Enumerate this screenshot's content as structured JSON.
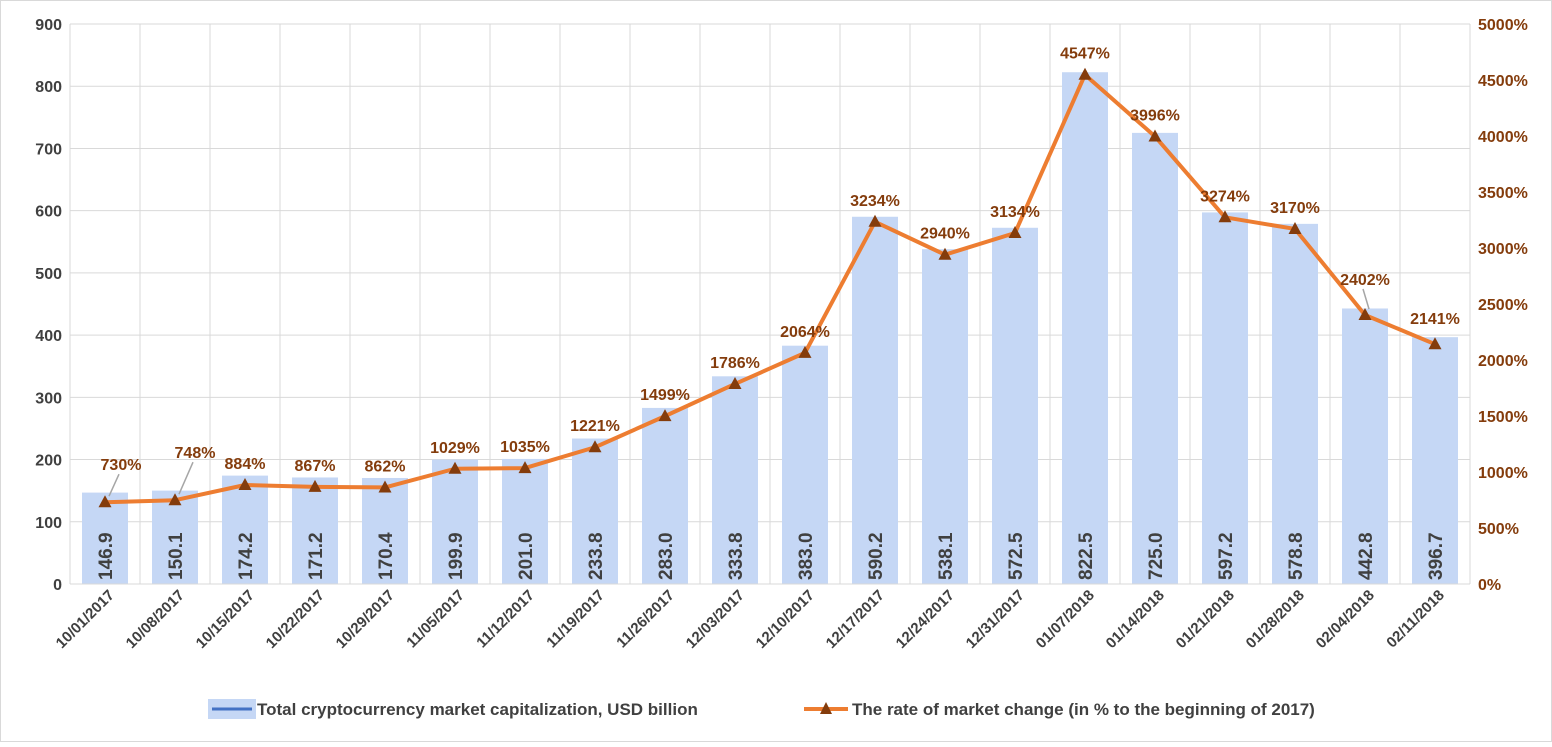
{
  "chart_data": {
    "type": "bar",
    "categories": [
      "10/01/2017",
      "10/08/2017",
      "10/15/2017",
      "10/22/2017",
      "10/29/2017",
      "11/05/2017",
      "11/12/2017",
      "11/19/2017",
      "11/26/2017",
      "12/03/2017",
      "12/10/2017",
      "12/17/2017",
      "12/24/2017",
      "12/31/2017",
      "01/07/2018",
      "01/14/2018",
      "01/21/2018",
      "01/28/2018",
      "02/04/2018",
      "02/11/2018"
    ],
    "bar_labels": [
      "146.9",
      "150.1",
      "174.2",
      "171.2",
      "170.4",
      "199.9",
      "201.0",
      "233.8",
      "283.0",
      "333.8",
      "383.0",
      "590.2",
      "538.1",
      "572.5",
      "822.5",
      "725.0",
      "597.2",
      "578.8",
      "442.8",
      "396.7"
    ],
    "line_labels": [
      "730%",
      "748%",
      "884%",
      "867%",
      "862%",
      "1029%",
      "1035%",
      "1221%",
      "1499%",
      "1786%",
      "2064%",
      "3234%",
      "2940%",
      "3134%",
      "4547%",
      "3996%",
      "3274%",
      "3170%",
      "2402%",
      "2141%"
    ],
    "series": [
      {
        "name": "Total cryptocurrency market capitalization, USD billion",
        "type": "bar",
        "axis": "left",
        "color": "#c5d7f5",
        "values": [
          146.9,
          150.1,
          174.2,
          171.2,
          170.4,
          199.9,
          201.0,
          233.8,
          283.0,
          333.8,
          383.0,
          590.2,
          538.1,
          572.5,
          822.5,
          725.0,
          597.2,
          578.8,
          442.8,
          396.7
        ]
      },
      {
        "name": "The rate of market change (in % to the beginning of 2017)",
        "type": "line",
        "axis": "right",
        "color": "#ed7d31",
        "marker_color": "#843c0c",
        "values": [
          730,
          748,
          884,
          867,
          862,
          1029,
          1035,
          1221,
          1499,
          1786,
          2064,
          3234,
          2940,
          3134,
          4547,
          3996,
          3274,
          3170,
          2402,
          2141
        ]
      }
    ],
    "y_left": {
      "min": 0,
      "max": 900,
      "step": 100,
      "tick_labels": [
        "0",
        "100",
        "200",
        "300",
        "400",
        "500",
        "600",
        "700",
        "800",
        "900"
      ]
    },
    "y_right": {
      "min": 0,
      "max": 5000,
      "step": 500,
      "tick_labels": [
        "0%",
        "500%",
        "1000%",
        "1500%",
        "2000%",
        "2500%",
        "3000%",
        "3500%",
        "4000%",
        "4500%",
        "5000%"
      ]
    },
    "grid": true,
    "legend_position": "bottom",
    "title": "",
    "xlabel": "",
    "ylabel": ""
  }
}
